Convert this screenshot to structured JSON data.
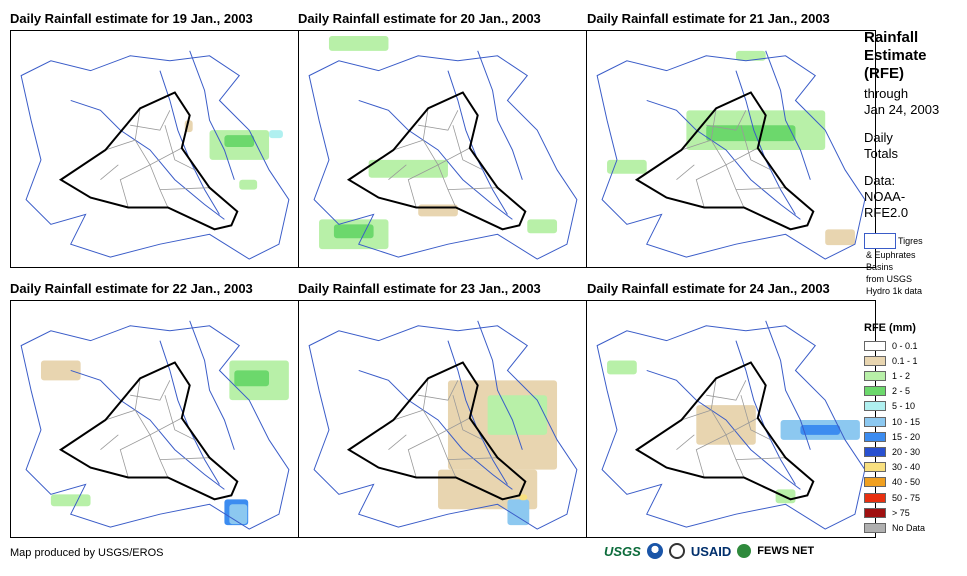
{
  "panels": [
    {
      "title": "Daily Rainfall estimate for 19 Jan., 2003"
    },
    {
      "title": "Daily Rainfall estimate for 20 Jan., 2003"
    },
    {
      "title": "Daily Rainfall estimate for 21 Jan., 2003"
    },
    {
      "title": "Daily Rainfall estimate for 22 Jan., 2003"
    },
    {
      "title": "Daily Rainfall estimate for 23 Jan., 2003"
    },
    {
      "title": "Daily Rainfall estimate for 24 Jan., 2003"
    }
  ],
  "side": {
    "heading_l1": "Rainfall",
    "heading_l2": "Estimate",
    "heading_l3": "(RFE)",
    "through": "through",
    "date": "Jan 24, 2003",
    "daily_l1": "Daily",
    "daily_l2": "Totals",
    "data_l1": "Data:",
    "data_l2": "NOAA-",
    "data_l3": "RFE2.0",
    "basin_l1": "Tigres",
    "basin_l2": "& Euphrates",
    "basin_l3": "Basins",
    "basin_l4": "from USGS",
    "basin_l5": "Hydro 1k data"
  },
  "legend": {
    "title": "RFE (mm)",
    "items": [
      {
        "label": "0 - 0.1",
        "color": "#ffffff"
      },
      {
        "label": "0.1 - 1",
        "color": "#e8d5b0"
      },
      {
        "label": "1 - 2",
        "color": "#b8f0a8"
      },
      {
        "label": "2 - 5",
        "color": "#6cd86c"
      },
      {
        "label": "5 - 10",
        "color": "#b0f0f0"
      },
      {
        "label": "10 - 15",
        "color": "#8cc8f0"
      },
      {
        "label": "15 - 20",
        "color": "#3c8cf0"
      },
      {
        "label": "20 - 30",
        "color": "#2850d0"
      },
      {
        "label": "30 - 40",
        "color": "#f8e080"
      },
      {
        "label": "40 - 50",
        "color": "#f0a020"
      },
      {
        "label": "50 - 75",
        "color": "#e83010"
      },
      {
        "label": "> 75",
        "color": "#a01010"
      },
      {
        "label": "No Data",
        "color": "#b0b0b0"
      }
    ]
  },
  "footer": {
    "credit": "Map produced by USGS/EROS"
  },
  "logos": {
    "usgs": "USGS",
    "usaid": "USAID",
    "fews": "FEWS NET"
  }
}
